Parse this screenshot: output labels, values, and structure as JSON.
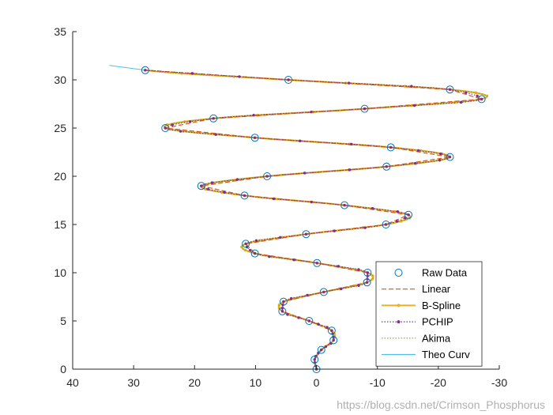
{
  "chart_data": {
    "type": "line",
    "title": "",
    "xlabel": "",
    "ylabel": "",
    "xlim": [
      40,
      -30
    ],
    "ylim": [
      0,
      35
    ],
    "x_reversed": true,
    "x_ticks": [
      40,
      30,
      20,
      10,
      0,
      -10,
      -20,
      -30
    ],
    "y_ticks": [
      0,
      5,
      10,
      15,
      20,
      25,
      30,
      35
    ],
    "grid": false,
    "legend_position": "bottom-right",
    "raw_points": [
      [
        0,
        0
      ],
      [
        0.3,
        1
      ],
      [
        -0.8,
        2
      ],
      [
        -2.8,
        3
      ],
      [
        -2.5,
        4
      ],
      [
        1.2,
        5
      ],
      [
        5.6,
        6
      ],
      [
        5.4,
        7
      ],
      [
        -1.2,
        8
      ],
      [
        -8.3,
        9
      ],
      [
        -8.4,
        10
      ],
      [
        -0.1,
        11
      ],
      [
        10.1,
        12
      ],
      [
        11.6,
        13
      ],
      [
        1.7,
        14
      ],
      [
        -11.4,
        15
      ],
      [
        -15.1,
        16
      ],
      [
        -4.6,
        17
      ],
      [
        11.8,
        18
      ],
      [
        18.9,
        19
      ],
      [
        8.1,
        20
      ],
      [
        -11.5,
        21
      ],
      [
        -21.9,
        22
      ],
      [
        -12.2,
        23
      ],
      [
        10.1,
        24
      ],
      [
        24.8,
        25
      ],
      [
        16.9,
        26
      ],
      [
        -7.9,
        27
      ],
      [
        -27.1,
        28
      ],
      [
        -21.9,
        29
      ],
      [
        4.6,
        30
      ],
      [
        28.1,
        31
      ]
    ],
    "theo_curve_range": [
      0,
      31.5
    ],
    "series": [
      {
        "name": "Raw Data",
        "color": "#0072BD",
        "style": "circle-markers"
      },
      {
        "name": "Linear",
        "color": "#D95319",
        "style": "dashed"
      },
      {
        "name": "B-Spline",
        "color": "#EDB120",
        "style": "solid-dot-markers"
      },
      {
        "name": "PCHIP",
        "color": "#7E2F8E",
        "style": "dotted-dot-markers"
      },
      {
        "name": "Akima",
        "color": "#77AC30",
        "style": "dotted"
      },
      {
        "name": "Theo Curv",
        "color": "#4DBEEE",
        "style": "solid-thin"
      }
    ]
  },
  "watermark": "https://blog.csdn.net/Crimson_Phosphorus"
}
